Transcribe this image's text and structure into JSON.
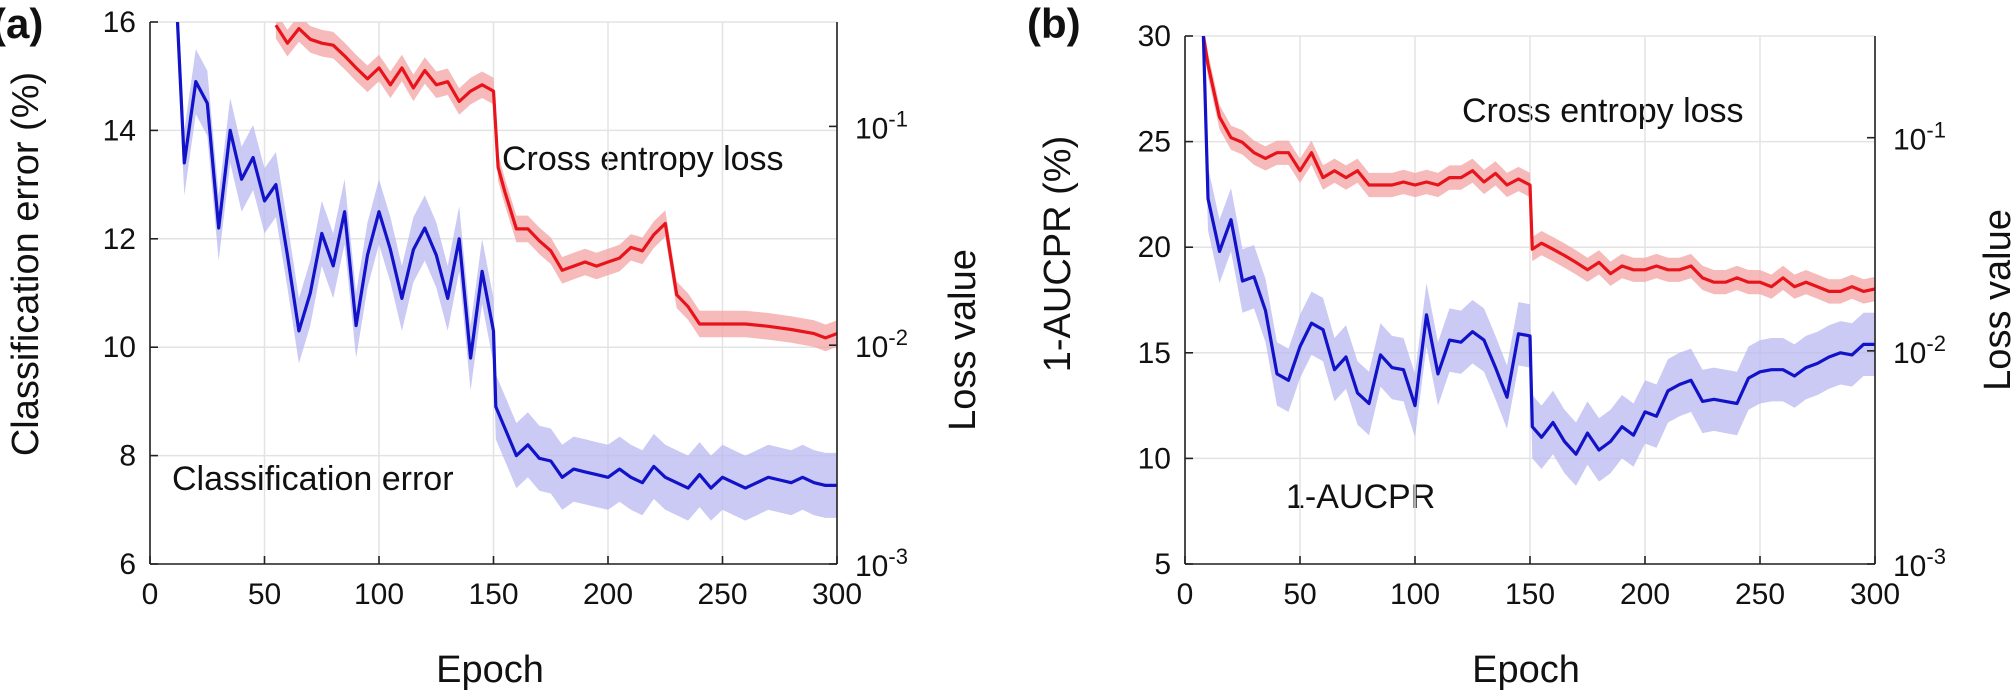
{
  "colors": {
    "loss_line": "#e8141c",
    "loss_band": "#f3a3a3",
    "metric_line": "#1212c8",
    "metric_band": "#b8b8f0",
    "grid": "#e3e3e3",
    "axis": "#222222"
  },
  "chart_data": [
    {
      "type": "line",
      "panel_label": "(a)",
      "xlabel": "Epoch",
      "ylabel": "Classification error (%)",
      "ylabel_right": "Loss value",
      "xlim": [
        0,
        300
      ],
      "ylim": [
        6,
        16
      ],
      "ylim_right": [
        0.001,
        0.3
      ],
      "y_right_scale": "log",
      "grid": true,
      "x_ticks": [
        "0",
        "50",
        "100",
        "150",
        "200",
        "250",
        "300"
      ],
      "y_ticks": [
        "6",
        "8",
        "10",
        "12",
        "14",
        "16"
      ],
      "y_right_ticks": [
        {
          "base": "10",
          "exp": "-3",
          "value": 0.001
        },
        {
          "base": "10",
          "exp": "-2",
          "value": 0.01
        },
        {
          "base": "10",
          "exp": "-1",
          "value": 0.1
        }
      ],
      "series": [
        {
          "name": "Cross entropy loss",
          "axis": "right",
          "x": [
            55,
            60,
            65,
            70,
            75,
            80,
            85,
            90,
            95,
            100,
            105,
            110,
            115,
            120,
            125,
            130,
            135,
            140,
            145,
            150,
            152,
            155,
            160,
            165,
            170,
            175,
            180,
            185,
            190,
            195,
            200,
            205,
            210,
            215,
            220,
            225,
            230,
            235,
            240,
            250,
            260,
            270,
            280,
            290,
            295,
            300
          ],
          "y": [
            0.29,
            0.24,
            0.28,
            0.25,
            0.24,
            0.235,
            0.21,
            0.185,
            0.165,
            0.185,
            0.155,
            0.185,
            0.15,
            0.18,
            0.155,
            0.16,
            0.13,
            0.145,
            0.155,
            0.145,
            0.065,
            0.05,
            0.034,
            0.034,
            0.03,
            0.027,
            0.022,
            0.023,
            0.024,
            0.023,
            0.024,
            0.025,
            0.028,
            0.027,
            0.032,
            0.036,
            0.017,
            0.015,
            0.0125,
            0.0125,
            0.0125,
            0.0122,
            0.0118,
            0.0113,
            0.0108,
            0.0113
          ],
          "band": 0.15
        },
        {
          "name": "Classification error",
          "axis": "left",
          "x": [
            12,
            15,
            20,
            25,
            30,
            35,
            40,
            45,
            50,
            55,
            60,
            65,
            70,
            75,
            80,
            85,
            90,
            95,
            100,
            105,
            110,
            115,
            120,
            125,
            130,
            135,
            140,
            145,
            150,
            151,
            155,
            160,
            165,
            170,
            175,
            180,
            185,
            190,
            195,
            200,
            205,
            210,
            215,
            220,
            225,
            230,
            235,
            240,
            245,
            250,
            255,
            260,
            265,
            270,
            275,
            280,
            285,
            290,
            295,
            300
          ],
          "y": [
            16,
            13.4,
            14.9,
            14.5,
            12.2,
            14.0,
            13.1,
            13.5,
            12.7,
            13.0,
            11.7,
            10.3,
            11.0,
            12.1,
            11.5,
            12.5,
            10.4,
            11.7,
            12.5,
            11.8,
            10.9,
            11.8,
            12.2,
            11.7,
            10.9,
            12.0,
            9.8,
            11.4,
            10.3,
            8.9,
            8.5,
            8.0,
            8.2,
            7.95,
            7.9,
            7.6,
            7.75,
            7.7,
            7.65,
            7.6,
            7.75,
            7.6,
            7.5,
            7.8,
            7.6,
            7.5,
            7.4,
            7.65,
            7.4,
            7.6,
            7.5,
            7.4,
            7.5,
            7.6,
            7.55,
            7.5,
            7.6,
            7.5,
            7.45,
            7.45
          ],
          "band": 0.6
        }
      ],
      "annotations": [
        "Cross entropy loss",
        "Classification error"
      ]
    },
    {
      "type": "line",
      "panel_label": "(b)",
      "xlabel": "Epoch",
      "ylabel": "1-AUCPR (%)",
      "ylabel_right": "Loss value",
      "xlim": [
        0,
        300
      ],
      "ylim": [
        5,
        30
      ],
      "ylim_right": [
        0.001,
        0.3
      ],
      "y_right_scale": "log",
      "grid": true,
      "x_ticks": [
        "0",
        "50",
        "100",
        "150",
        "200",
        "250",
        "300"
      ],
      "y_ticks": [
        "5",
        "10",
        "15",
        "20",
        "25",
        "30"
      ],
      "y_right_ticks": [
        {
          "base": "10",
          "exp": "-3",
          "value": 0.001
        },
        {
          "base": "10",
          "exp": "-2",
          "value": 0.01
        },
        {
          "base": "10",
          "exp": "-1",
          "value": 0.1
        }
      ],
      "series": [
        {
          "name": "Cross entropy loss",
          "axis": "right",
          "x": [
            8,
            10,
            15,
            20,
            25,
            30,
            35,
            40,
            45,
            50,
            55,
            60,
            65,
            70,
            75,
            80,
            85,
            90,
            95,
            100,
            105,
            110,
            115,
            120,
            125,
            130,
            135,
            140,
            145,
            150,
            151,
            155,
            160,
            165,
            170,
            175,
            180,
            185,
            190,
            195,
            200,
            205,
            210,
            215,
            220,
            225,
            230,
            235,
            240,
            245,
            250,
            255,
            260,
            265,
            270,
            275,
            280,
            285,
            290,
            295,
            300
          ],
          "y": [
            0.3,
            0.22,
            0.125,
            0.1,
            0.095,
            0.085,
            0.08,
            0.085,
            0.085,
            0.07,
            0.085,
            0.065,
            0.07,
            0.065,
            0.07,
            0.06,
            0.06,
            0.06,
            0.062,
            0.06,
            0.062,
            0.06,
            0.065,
            0.065,
            0.07,
            0.062,
            0.068,
            0.06,
            0.064,
            0.06,
            0.03,
            0.032,
            0.03,
            0.028,
            0.026,
            0.024,
            0.026,
            0.023,
            0.025,
            0.024,
            0.024,
            0.025,
            0.024,
            0.024,
            0.025,
            0.022,
            0.021,
            0.021,
            0.022,
            0.021,
            0.021,
            0.02,
            0.022,
            0.02,
            0.021,
            0.02,
            0.019,
            0.019,
            0.02,
            0.019,
            0.0195
          ],
          "band": 0.14
        },
        {
          "name": "1-AUCPR",
          "axis": "left",
          "x": [
            8,
            10,
            15,
            20,
            25,
            30,
            35,
            40,
            45,
            50,
            55,
            60,
            65,
            70,
            75,
            80,
            85,
            90,
            95,
            100,
            105,
            110,
            115,
            120,
            125,
            130,
            135,
            140,
            145,
            150,
            151,
            155,
            160,
            165,
            170,
            175,
            180,
            185,
            190,
            195,
            200,
            205,
            210,
            215,
            220,
            225,
            230,
            235,
            240,
            245,
            250,
            255,
            260,
            265,
            270,
            275,
            280,
            285,
            290,
            295,
            300
          ],
          "y": [
            30,
            22.3,
            19.8,
            21.3,
            18.4,
            18.6,
            17.0,
            14.0,
            13.7,
            15.3,
            16.4,
            16.1,
            14.2,
            14.8,
            13.1,
            12.6,
            14.9,
            14.3,
            14.2,
            12.5,
            16.8,
            14.0,
            15.6,
            15.5,
            16.0,
            15.6,
            14.3,
            12.9,
            15.9,
            15.8,
            11.5,
            11.0,
            11.7,
            10.8,
            10.2,
            11.2,
            10.4,
            10.8,
            11.5,
            11.1,
            12.2,
            12.0,
            13.2,
            13.5,
            13.7,
            12.7,
            12.8,
            12.7,
            12.6,
            13.8,
            14.1,
            14.2,
            14.2,
            13.9,
            14.3,
            14.5,
            14.8,
            15.0,
            14.9,
            15.4,
            15.4
          ],
          "band": 1.5
        }
      ],
      "annotations": [
        "Cross entropy loss",
        "1-AUCPR"
      ]
    }
  ]
}
